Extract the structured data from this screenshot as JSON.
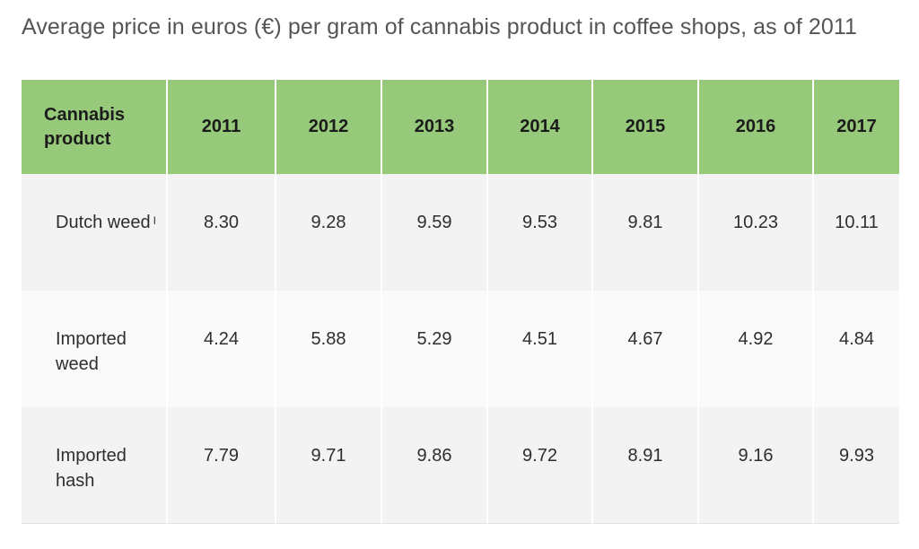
{
  "caption": "Average price in euros (€) per gram of cannabis product in coffee shops, as of 2011",
  "table": {
    "header": {
      "product_label": "Cannabis product",
      "years": [
        "2011",
        "2012",
        "2013",
        "2014",
        "2015",
        "2016",
        "2017"
      ]
    },
    "rows": [
      {
        "product": "Dutch weed",
        "note": "I",
        "values": [
          "8.30",
          "9.28",
          "9.59",
          "9.53",
          "9.81",
          "10.23",
          "10.11"
        ]
      },
      {
        "product": "Imported weed",
        "note": "",
        "values": [
          "4.24",
          "5.88",
          "5.29",
          "4.51",
          "4.67",
          "4.92",
          "4.84"
        ]
      },
      {
        "product": "Imported hash",
        "note": "",
        "values": [
          "7.79",
          "9.71",
          "9.86",
          "9.72",
          "8.91",
          "9.16",
          "9.93"
        ]
      }
    ]
  },
  "colors": {
    "header_bg": "#97c97b",
    "row_odd_bg": "#f3f3f3",
    "row_even_bg": "#fafafa"
  }
}
